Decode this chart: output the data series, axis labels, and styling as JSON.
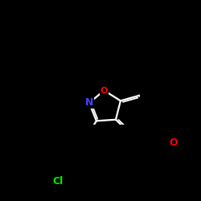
{
  "background_color": "#000000",
  "bond_color": "#ffffff",
  "atom_colors": {
    "Cl": "#00ee00",
    "O_aldehyde": "#ff0000",
    "O_isoxazole": "#ff0000",
    "N": "#4444ff",
    "C": "#ffffff"
  },
  "figsize": [
    2.5,
    2.5
  ],
  "dpi": 100,
  "bl": 28
}
